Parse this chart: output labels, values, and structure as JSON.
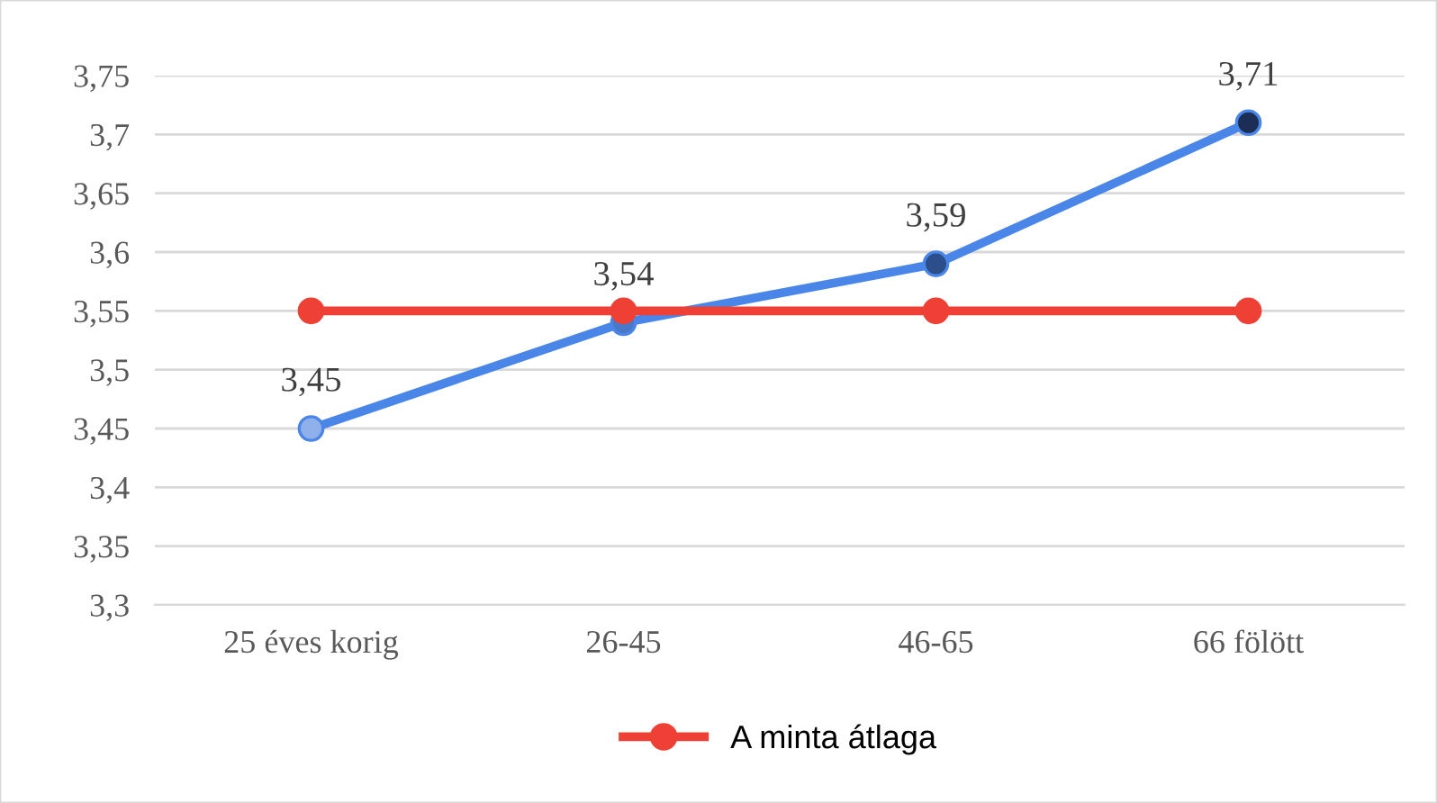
{
  "chart_data": {
    "type": "line",
    "categories": [
      "25 éves korig",
      "26-45",
      "46-65",
      "66 fölött"
    ],
    "series": [
      {
        "color": "#4a86e8",
        "colors": [
          "#8fb0ea",
          "#4a78c8",
          "#2c4f8c",
          "#1c2e55"
        ],
        "values": [
          3.45,
          3.54,
          3.59,
          3.71
        ],
        "value_labels": [
          "3,45",
          "3,54",
          "3,59",
          "3,71"
        ]
      },
      {
        "name": "A minta átlaga",
        "color": "#ee4035",
        "values": [
          3.55,
          3.55,
          3.55,
          3.55
        ]
      }
    ],
    "ylim": [
      3.3,
      3.75
    ],
    "yticks": [
      {
        "value": 3.3,
        "label": "3,3"
      },
      {
        "value": 3.35,
        "label": "3,35"
      },
      {
        "value": 3.4,
        "label": "3,4"
      },
      {
        "value": 3.45,
        "label": "3,45"
      },
      {
        "value": 3.5,
        "label": "3,5"
      },
      {
        "value": 3.55,
        "label": "3,55"
      },
      {
        "value": 3.6,
        "label": "3,6"
      },
      {
        "value": 3.65,
        "label": "3,65"
      },
      {
        "value": 3.7,
        "label": "3,7"
      },
      {
        "value": 3.75,
        "label": "3,75"
      }
    ],
    "grid": "y",
    "legend": "bottom",
    "marker": "circle",
    "line_style": "solid"
  }
}
